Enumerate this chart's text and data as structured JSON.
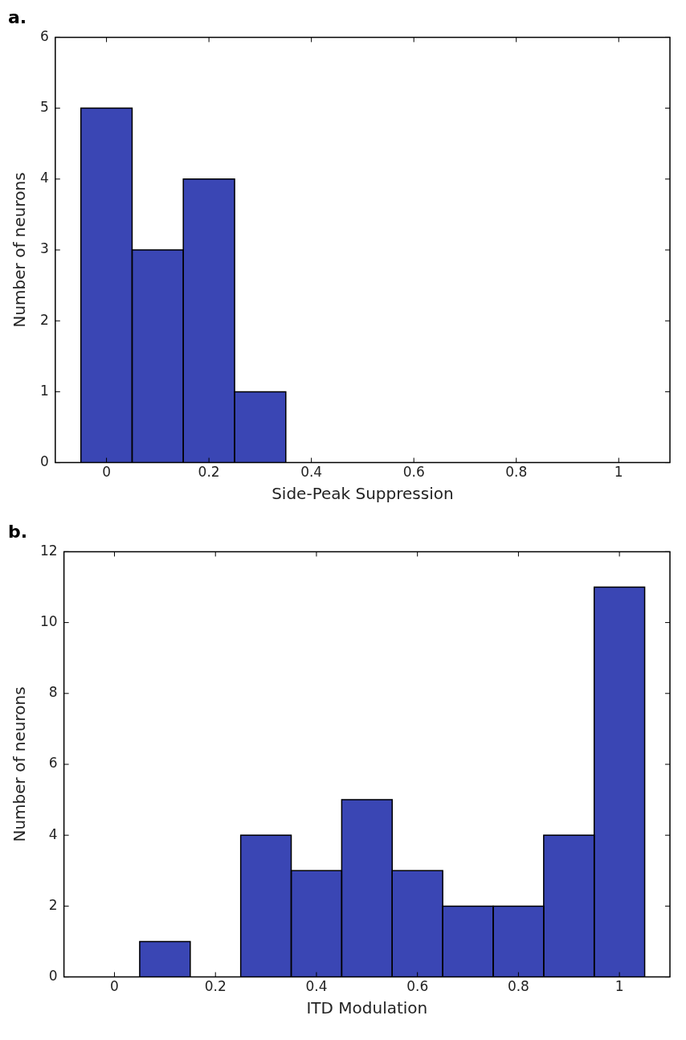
{
  "chart_data": [
    {
      "type": "histogram",
      "title": "a.",
      "xlabel": "Side-Peak Suppression",
      "ylabel": "Number of neurons",
      "bins": [
        -0.05,
        0.05,
        0.15,
        0.25,
        0.35
      ],
      "values": [
        5,
        3,
        4,
        1
      ],
      "color": "#3a46b4",
      "xlim": [
        -0.1,
        1.1
      ],
      "xticks": [
        0,
        0.2,
        0.4,
        0.6,
        0.8,
        1
      ],
      "ylim": [
        0,
        6
      ],
      "yticks": [
        0,
        1,
        2,
        3,
        4,
        5,
        6
      ],
      "grid": false,
      "legend": false
    },
    {
      "type": "histogram",
      "title": "b.",
      "xlabel": "ITD Modulation",
      "ylabel": "Number of neurons",
      "bins": [
        -0.05,
        0.05,
        0.15,
        0.25,
        0.35,
        0.45,
        0.55,
        0.65,
        0.75,
        0.85,
        0.95,
        1.05
      ],
      "values": [
        0,
        1,
        0,
        4,
        3,
        5,
        3,
        2,
        2,
        4,
        11
      ],
      "color": "#3a46b4",
      "xlim": [
        -0.1,
        1.1
      ],
      "xticks": [
        0,
        0.2,
        0.4,
        0.6,
        0.8,
        1
      ],
      "ylim": [
        0,
        12
      ],
      "yticks": [
        0,
        2,
        4,
        6,
        8,
        10,
        12
      ],
      "grid": false,
      "legend": false
    }
  ]
}
